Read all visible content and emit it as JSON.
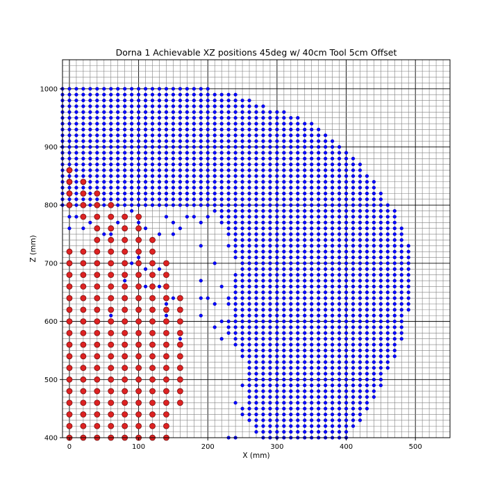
{
  "chart_data": {
    "type": "scatter",
    "title": "Dorna 1 Achievable XZ positions 45deg w/ 40cm Tool 5cm Offset",
    "xlabel": "X (mm)",
    "ylabel": "Z (mm)",
    "xlim": [
      -10,
      550
    ],
    "ylim": [
      400,
      1050
    ],
    "xticks": [
      0,
      100,
      200,
      300,
      400,
      500
    ],
    "yticks": [
      400,
      500,
      600,
      700,
      800,
      900,
      1000
    ],
    "grid": "minor every 10 mm on both axes, major every 100 mm",
    "point_spacing": 10,
    "series": [
      {
        "color": "#0000ff",
        "marker": "small filled circle",
        "description_of_region": "dense lattice of points (10 mm spacing) forming a quarter-annulus region bounded by outer radius ~ from (200,1000) through (490,700) to (400,400) and inner boundary around (200-260, 400-800); plus sparse points in lower-left interior",
        "rows": [
          {
            "z": 1000,
            "x": [
              -10,
              200
            ]
          },
          {
            "z": 990,
            "x": [
              -10,
              240
            ]
          },
          {
            "z": 980,
            "x": [
              -10,
              260
            ]
          },
          {
            "z": 970,
            "x": [
              -10,
              280
            ]
          },
          {
            "z": 960,
            "x": [
              -10,
              310
            ]
          },
          {
            "z": 950,
            "x": [
              -10,
              330
            ]
          },
          {
            "z": 940,
            "x": [
              -10,
              350
            ]
          },
          {
            "z": 930,
            "x": [
              -10,
              360
            ]
          },
          {
            "z": 920,
            "x": [
              -10,
              370
            ]
          },
          {
            "z": 910,
            "x": [
              -10,
              380
            ]
          },
          {
            "z": 900,
            "x": [
              -10,
              390
            ]
          },
          {
            "z": 890,
            "x": [
              -10,
              400
            ]
          },
          {
            "z": 880,
            "x": [
              -10,
              410
            ]
          },
          {
            "z": 870,
            "x": [
              -10,
              420
            ]
          },
          {
            "z": 860,
            "x": [
              -10,
              420
            ]
          },
          {
            "z": 850,
            "x": [
              -10,
              430
            ]
          },
          {
            "z": 840,
            "x": [
              -10,
              440
            ]
          },
          {
            "z": 830,
            "x": [
              -10,
              440
            ]
          },
          {
            "z": 820,
            "x": [
              -10,
              450
            ]
          },
          {
            "z": 810,
            "x": [
              -10,
              450
            ]
          },
          {
            "z": 800,
            "x": [
              -10,
              460
            ]
          },
          {
            "z": 790,
            "x": [
              210,
              470
            ]
          },
          {
            "z": 780,
            "x": [
              220,
              470
            ]
          },
          {
            "z": 770,
            "x": [
              220,
              470
            ]
          },
          {
            "z": 760,
            "x": [
              230,
              480
            ]
          },
          {
            "z": 750,
            "x": [
              230,
              480
            ]
          },
          {
            "z": 740,
            "x": [
              240,
              480
            ]
          },
          {
            "z": 730,
            "x": [
              240,
              490
            ]
          },
          {
            "z": 720,
            "x": [
              240,
              490
            ]
          },
          {
            "z": 710,
            "x": [
              240,
              490
            ]
          },
          {
            "z": 700,
            "x": [
              250,
              490
            ]
          },
          {
            "z": 690,
            "x": [
              250,
              490
            ]
          },
          {
            "z": 680,
            "x": [
              240,
              490
            ]
          },
          {
            "z": 670,
            "x": [
              240,
              490
            ]
          },
          {
            "z": 660,
            "x": [
              240,
              490
            ]
          },
          {
            "z": 650,
            "x": [
              240,
              490
            ]
          },
          {
            "z": 640,
            "x": [
              230,
              490
            ]
          },
          {
            "z": 630,
            "x": [
              230,
              490
            ]
          },
          {
            "z": 620,
            "x": [
              240,
              490
            ]
          },
          {
            "z": 610,
            "x": [
              240,
              480
            ]
          },
          {
            "z": 600,
            "x": [
              230,
              480
            ]
          },
          {
            "z": 590,
            "x": [
              230,
              480
            ]
          },
          {
            "z": 580,
            "x": [
              230,
              480
            ]
          },
          {
            "z": 570,
            "x": [
              240,
              480
            ]
          },
          {
            "z": 560,
            "x": [
              240,
              470
            ]
          },
          {
            "z": 550,
            "x": [
              250,
              470
            ]
          },
          {
            "z": 540,
            "x": [
              250,
              470
            ]
          },
          {
            "z": 530,
            "x": [
              260,
              460
            ]
          },
          {
            "z": 520,
            "x": [
              260,
              460
            ]
          },
          {
            "z": 510,
            "x": [
              260,
              450
            ]
          },
          {
            "z": 500,
            "x": [
              260,
              450
            ]
          },
          {
            "z": 490,
            "x": [
              260,
              450
            ]
          },
          {
            "z": 480,
            "x": [
              260,
              440
            ]
          },
          {
            "z": 470,
            "x": [
              260,
              440
            ]
          },
          {
            "z": 460,
            "x": [
              260,
              430
            ]
          },
          {
            "z": 450,
            "x": [
              260,
              430
            ]
          },
          {
            "z": 440,
            "x": [
              260,
              420
            ]
          },
          {
            "z": 430,
            "x": [
              260,
              420
            ]
          },
          {
            "z": 420,
            "x": [
              270,
              410
            ]
          },
          {
            "z": 410,
            "x": [
              270,
              400
            ]
          },
          {
            "z": 400,
            "x": [
              280,
              400
            ]
          }
        ],
        "extra_points": [
          [
            190,
            730
          ],
          [
            230,
            730
          ],
          [
            190,
            670
          ],
          [
            190,
            640
          ],
          [
            200,
            640
          ],
          [
            190,
            610
          ],
          [
            210,
            700
          ],
          [
            220,
            660
          ],
          [
            210,
            630
          ],
          [
            220,
            600
          ],
          [
            210,
            590
          ],
          [
            220,
            570
          ],
          [
            230,
            400
          ],
          [
            240,
            400
          ],
          [
            250,
            450
          ],
          [
            250,
            440
          ],
          [
            240,
            460
          ],
          [
            250,
            490
          ],
          [
            0,
            780
          ],
          [
            0,
            760
          ],
          [
            10,
            780
          ],
          [
            20,
            760
          ],
          [
            30,
            770
          ],
          [
            40,
            760
          ],
          [
            50,
            750
          ],
          [
            60,
            750
          ],
          [
            70,
            770
          ],
          [
            80,
            760
          ],
          [
            90,
            790
          ],
          [
            100,
            770
          ],
          [
            110,
            760
          ],
          [
            130,
            750
          ],
          [
            150,
            750
          ],
          [
            140,
            780
          ],
          [
            150,
            770
          ],
          [
            160,
            760
          ],
          [
            170,
            780
          ],
          [
            180,
            780
          ],
          [
            190,
            770
          ],
          [
            200,
            780
          ],
          [
            90,
            700
          ],
          [
            100,
            710
          ],
          [
            110,
            690
          ],
          [
            130,
            690
          ],
          [
            120,
            680
          ],
          [
            110,
            660
          ],
          [
            120,
            640
          ],
          [
            130,
            660
          ],
          [
            140,
            630
          ],
          [
            140,
            610
          ],
          [
            150,
            640
          ],
          [
            160,
            620
          ],
          [
            80,
            670
          ],
          [
            60,
            610
          ],
          [
            160,
            570
          ]
        ]
      },
      {
        "color": "#dd2222",
        "marker": "larger filled circle with dark edge",
        "rows": [
          {
            "z": 860,
            "x": [
              0,
              0
            ]
          },
          {
            "z": 840,
            "x": [
              0,
              20
            ]
          },
          {
            "z": 820,
            "x": [
              0,
              40
            ]
          },
          {
            "z": 800,
            "x": [
              0,
              60
            ]
          },
          {
            "z": 780,
            "x": [
              20,
              100
            ]
          },
          {
            "z": 760,
            "x": [
              40,
              100
            ]
          },
          {
            "z": 740,
            "x": [
              40,
              120
            ]
          },
          {
            "z": 720,
            "x": [
              0,
              120
            ]
          },
          {
            "z": 700,
            "x": [
              0,
              140
            ]
          },
          {
            "z": 680,
            "x": [
              0,
              140
            ]
          },
          {
            "z": 660,
            "x": [
              0,
              140
            ]
          },
          {
            "z": 640,
            "x": [
              0,
              160
            ]
          },
          {
            "z": 620,
            "x": [
              0,
              160
            ]
          },
          {
            "z": 600,
            "x": [
              0,
              160
            ]
          },
          {
            "z": 580,
            "x": [
              0,
              160
            ]
          },
          {
            "z": 560,
            "x": [
              0,
              160
            ]
          },
          {
            "z": 540,
            "x": [
              0,
              160
            ]
          },
          {
            "z": 520,
            "x": [
              0,
              160
            ]
          },
          {
            "z": 500,
            "x": [
              0,
              160
            ]
          },
          {
            "z": 480,
            "x": [
              0,
              160
            ]
          },
          {
            "z": 460,
            "x": [
              0,
              160
            ]
          },
          {
            "z": 440,
            "x": [
              0,
              140
            ]
          },
          {
            "z": 420,
            "x": [
              0,
              140
            ]
          },
          {
            "z": 400,
            "x": [
              0,
              140
            ]
          }
        ],
        "red_spacing": 20
      }
    ]
  }
}
